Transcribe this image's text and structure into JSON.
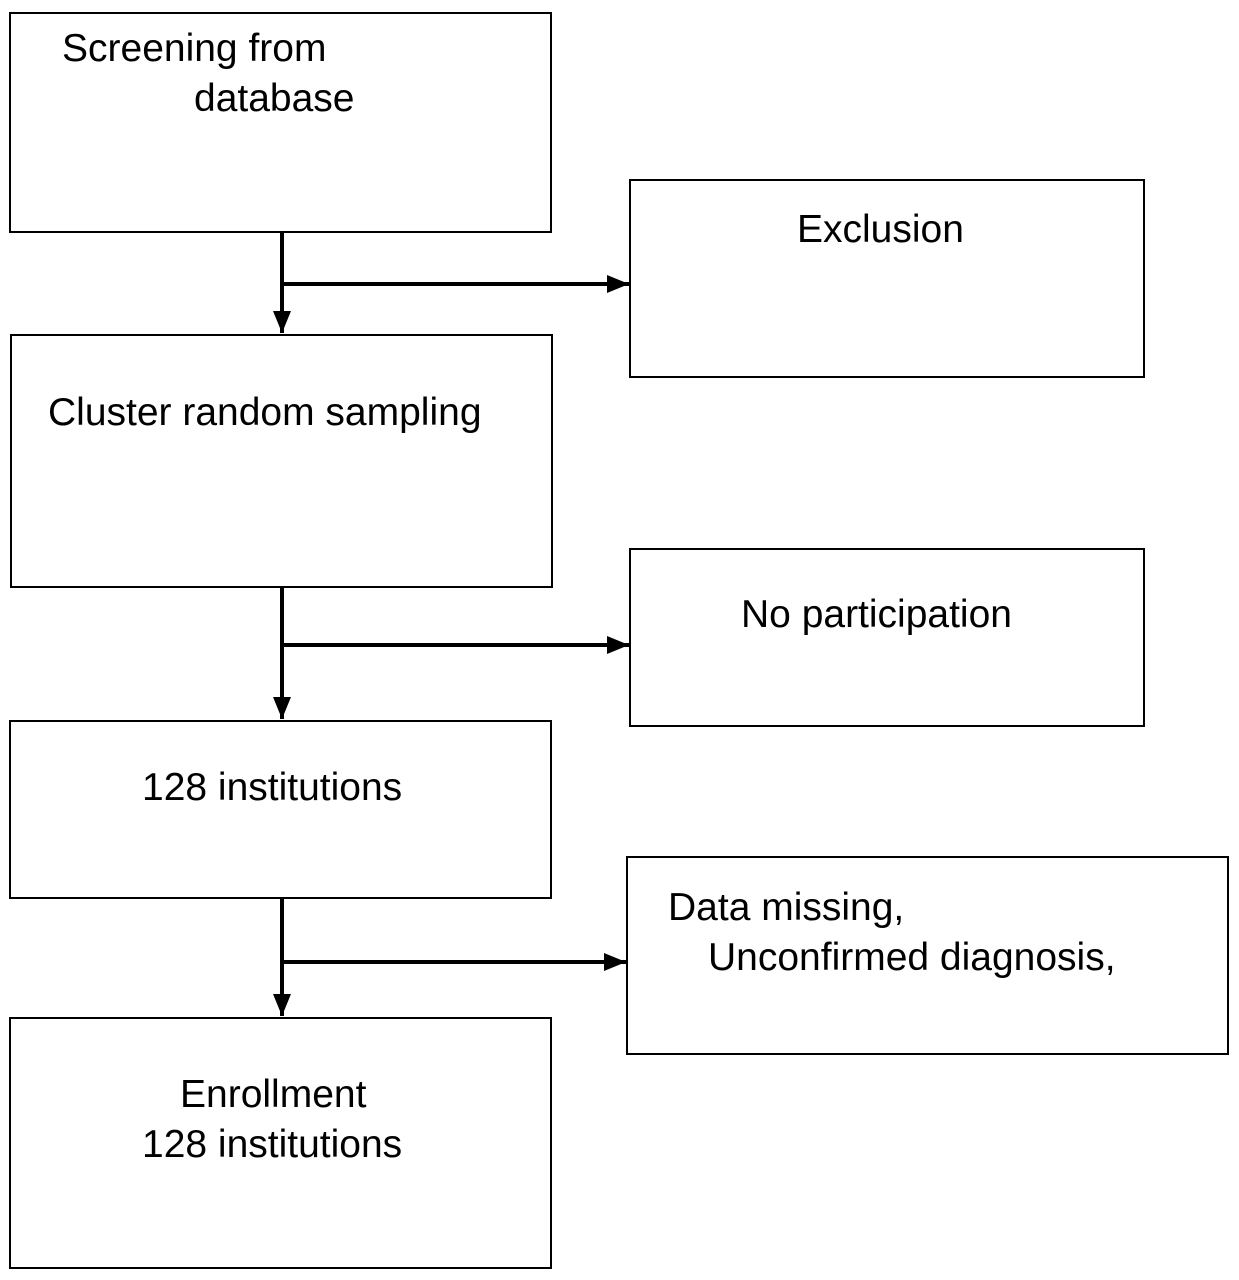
{
  "flowchart": {
    "steps": [
      {
        "lines": [
          "Screening from",
          "database"
        ]
      },
      {
        "lines": [
          "Cluster random sampling"
        ]
      },
      {
        "lines": [
          "128 institutions"
        ]
      },
      {
        "lines": [
          "Enrollment",
          "128 institutions"
        ]
      }
    ],
    "side_boxes": [
      {
        "lines": [
          "Exclusion"
        ]
      },
      {
        "lines": [
          "No participation"
        ]
      },
      {
        "lines": [
          "Data missing,",
          "Unconfirmed diagnosis,"
        ]
      }
    ]
  }
}
